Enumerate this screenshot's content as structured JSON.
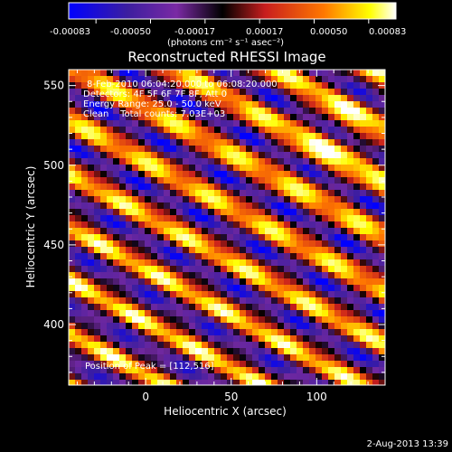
{
  "colorbar": {
    "ticks": [
      "-0.00083",
      "-0.00050",
      "-0.00017",
      "0.00017",
      "0.00050",
      "0.00083"
    ],
    "unit_label": "(photons cm⁻² s⁻¹ asec⁻²)",
    "range": [
      -0.00083,
      0.00083
    ]
  },
  "chart_data": {
    "type": "heatmap",
    "title": "Reconstructed RHESSI Image",
    "xlabel": "Heliocentric X (arcsec)",
    "ylabel": "Heliocentric Y (arcsec)",
    "xlim": [
      -45,
      140
    ],
    "ylim": [
      362,
      560
    ],
    "xticks": [
      0,
      50,
      100
    ],
    "yticks": [
      400,
      450,
      500,
      550
    ],
    "annotations": [
      "8-Feb-2010 06:04:20.000 to 06:08:20.000",
      "Detectors: 4F 5F 6F 7F 8F, Att 0",
      "Energy Range: 25.0 - 50.0 keV",
      "Clean    Total counts: 7.03E+03"
    ],
    "peak_label": "Position of Peak = [112,516]",
    "peak": [
      112,
      516
    ],
    "pattern": "diagonal stripe fringes, maxima along lines descending left to right",
    "colormap": [
      "#0000ff",
      "#3c1ea0",
      "#7028a0",
      "#000000",
      "#c81e1e",
      "#ff7800",
      "#ffff00",
      "#ffffff"
    ]
  },
  "footer": {
    "date": "2-Aug-2013 13:39"
  }
}
